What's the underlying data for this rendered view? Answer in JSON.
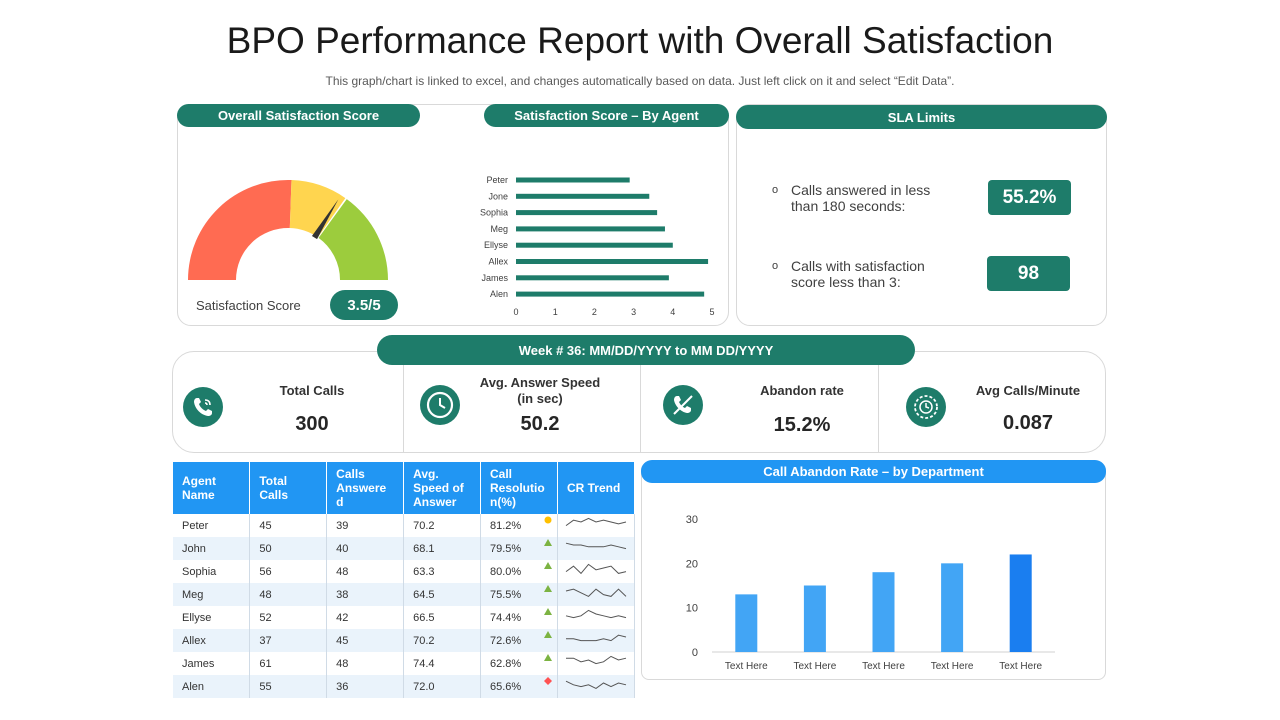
{
  "header": {
    "title": "BPO Performance Report with Overall Satisfaction",
    "subtitle": "This graph/chart is linked to excel, and changes automatically based on data. Just left click on it and select “Edit Data”."
  },
  "satisfaction": {
    "header": "Overall Satisfaction Score",
    "label": "Satisfaction Score",
    "value": "3.5/5",
    "colors": {
      "red": "#ff6b52",
      "yellow": "#ffd54f",
      "green": "#9ccc3d",
      "needle": "#333333"
    }
  },
  "by_agent": {
    "header": "Satisfaction Score – By Agent"
  },
  "sla": {
    "header": "SLA Limits",
    "items": [
      {
        "bullet": "o",
        "line1": "Calls answered in less",
        "line2": "than 180 seconds:",
        "value": "55.2%"
      },
      {
        "bullet": "o",
        "line1": "Calls with satisfaction",
        "line2": "score less than 3:",
        "value": "98"
      }
    ]
  },
  "week": {
    "label": "Week # 36: MM/DD/YYYY to MM DD/YYYY"
  },
  "kpis": [
    {
      "icon": "phone-icon",
      "label1": "Total Calls",
      "label2": "",
      "value": "300"
    },
    {
      "icon": "clock-icon",
      "label1": "Avg. Answer Speed",
      "label2": "(in sec)",
      "value": "50.2"
    },
    {
      "icon": "hangup-icon",
      "label1": "Abandon rate",
      "label2": "",
      "value": "15.2%"
    },
    {
      "icon": "timer-icon",
      "label1": "Avg Calls/Minute",
      "label2": "",
      "value": "0.087"
    }
  ],
  "table": {
    "headers": [
      "Agent Name",
      "Total Calls",
      "Calls Answered",
      "Avg. Speed of Answer",
      "Call Resolution(%)",
      "CR Trend"
    ],
    "header_lines": [
      [
        "Agent",
        "Name"
      ],
      [
        "Total",
        "Calls"
      ],
      [
        "Calls",
        "Answere",
        "d"
      ],
      [
        "Avg.",
        "Speed of",
        "Answer"
      ],
      [
        "Call",
        "Resolutio",
        "n(%)"
      ],
      [
        "CR Trend"
      ]
    ],
    "rows": [
      {
        "name": "Peter",
        "total": "45",
        "answered": "39",
        "speed": "70.2",
        "resolution": "81.2%",
        "indicator": "circle",
        "indicator_color": "#ffc000",
        "trend": [
          3,
          6,
          5,
          7,
          5,
          6,
          5,
          4,
          5
        ]
      },
      {
        "name": "John",
        "total": "50",
        "answered": "40",
        "speed": "68.1",
        "resolution": "79.5%",
        "indicator": "up",
        "indicator_color": "#7cb342",
        "trend": [
          6,
          5,
          5,
          4,
          4,
          4,
          5,
          4,
          3
        ]
      },
      {
        "name": "Sophia",
        "total": "56",
        "answered": "48",
        "speed": "63.3",
        "resolution": "80.0%",
        "indicator": "up",
        "indicator_color": "#7cb342",
        "trend": [
          3,
          6,
          2,
          7,
          4,
          5,
          6,
          2,
          3
        ]
      },
      {
        "name": "Meg",
        "total": "48",
        "answered": "38",
        "speed": "64.5",
        "resolution": "75.5%",
        "indicator": "up",
        "indicator_color": "#7cb342",
        "trend": [
          5,
          6,
          4,
          2,
          6,
          3,
          2,
          6,
          2
        ]
      },
      {
        "name": "Ellyse",
        "total": "52",
        "answered": "42",
        "speed": "66.5",
        "resolution": "74.4%",
        "indicator": "up",
        "indicator_color": "#7cb342",
        "trend": [
          4,
          3,
          4,
          7,
          5,
          4,
          3,
          4,
          3
        ]
      },
      {
        "name": "Allex",
        "total": "37",
        "answered": "45",
        "speed": "70.2",
        "resolution": "72.6%",
        "indicator": "up",
        "indicator_color": "#7cb342",
        "trend": [
          4,
          4,
          3,
          3,
          3,
          4,
          3,
          6,
          5
        ]
      },
      {
        "name": "James",
        "total": "61",
        "answered": "48",
        "speed": "74.4",
        "resolution": "62.8%",
        "indicator": "up",
        "indicator_color": "#7cb342",
        "trend": [
          6,
          6,
          4,
          5,
          3,
          4,
          7,
          5,
          6
        ]
      },
      {
        "name": "Alen",
        "total": "55",
        "answered": "36",
        "speed": "72.0",
        "resolution": "65.6%",
        "indicator": "diamond",
        "indicator_color": "#ff5252",
        "trend": [
          6,
          4,
          3,
          4,
          2,
          5,
          3,
          5,
          4
        ]
      }
    ]
  },
  "abandon": {
    "header": "Call Abandon Rate – by Department"
  },
  "chart_data": [
    {
      "type": "bar",
      "orientation": "horizontal",
      "title": "Satisfaction Score – By Agent",
      "categories": [
        "Peter",
        "Jone",
        "Sophia",
        "Meg",
        "Ellyse",
        "Allex",
        "James",
        "Alen"
      ],
      "values": [
        2.9,
        3.4,
        3.6,
        3.8,
        4.0,
        4.9,
        3.9,
        4.8
      ],
      "xlim": [
        0,
        5
      ],
      "xticks": [
        "0",
        "1",
        "2",
        "3",
        "4",
        "5"
      ],
      "color": "#1e7c6a"
    },
    {
      "type": "bar",
      "title": "Call Abandon Rate – by Department",
      "categories": [
        "Text Here",
        "Text Here",
        "Text Here",
        "Text Here",
        "Text Here"
      ],
      "values": [
        13,
        15,
        18,
        20,
        22
      ],
      "ylim": [
        0,
        30
      ],
      "yticks": [
        "0",
        "10",
        "20",
        "30"
      ],
      "colors": [
        "#42a5f5",
        "#42a5f5",
        "#42a5f5",
        "#42a5f5",
        "#1a7ef0"
      ]
    }
  ]
}
